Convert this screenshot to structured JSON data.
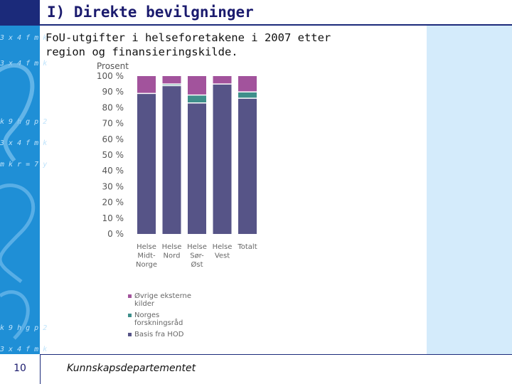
{
  "slide": {
    "title": "I) Direkte bevilgninger",
    "subtitle_line1": "FoU-utgifter i helseforetakene i 2007 etter",
    "subtitle_line2": "region og finansieringskilde.",
    "page_number": "10",
    "footer": "Kunnskapsdepartementet",
    "decor_text": [
      "3 x 4 f m k",
      "k 9 h g p 2",
      "3 x 4 f m k",
      "m k r = 7 y",
      "k 9 h g p 2",
      "3 x 4 f m k"
    ]
  },
  "chart_data": {
    "type": "bar",
    "stacked": true,
    "ylabel": "Prosent",
    "ylim": [
      0,
      100
    ],
    "yticks": [
      "0 %",
      "10 %",
      "20 %",
      "30 %",
      "40 %",
      "50 %",
      "60 %",
      "70 %",
      "80 %",
      "90 %",
      "100 %"
    ],
    "categories": [
      [
        "Helse",
        "Midt-",
        "Norge"
      ],
      [
        "Helse",
        "Nord"
      ],
      [
        "Helse",
        "Sør-",
        "Øst"
      ],
      [
        "Helse",
        "Vest"
      ],
      [
        "Totalt"
      ]
    ],
    "series": [
      {
        "name": "Basis fra HOD",
        "color": "#565487",
        "values": [
          89,
          94,
          83,
          95,
          86
        ]
      },
      {
        "name": "Norges forskningsråd",
        "color": "#3f8f8b",
        "values": [
          0,
          1,
          5,
          0,
          4
        ]
      },
      {
        "name": "Øvrige eksterne kilder",
        "color": "#a2539c",
        "values": [
          11,
          5,
          12,
          5,
          10
        ]
      }
    ],
    "legend": [
      {
        "lines": [
          "Øvrige eksterne",
          "kilder"
        ],
        "color": "#a2539c"
      },
      {
        "lines": [
          "Norges",
          "forskningsråd"
        ],
        "color": "#3f8f8b"
      },
      {
        "lines": [
          "Basis fra HOD"
        ],
        "color": "#565487"
      }
    ],
    "legend_position": "below",
    "grid": false
  }
}
